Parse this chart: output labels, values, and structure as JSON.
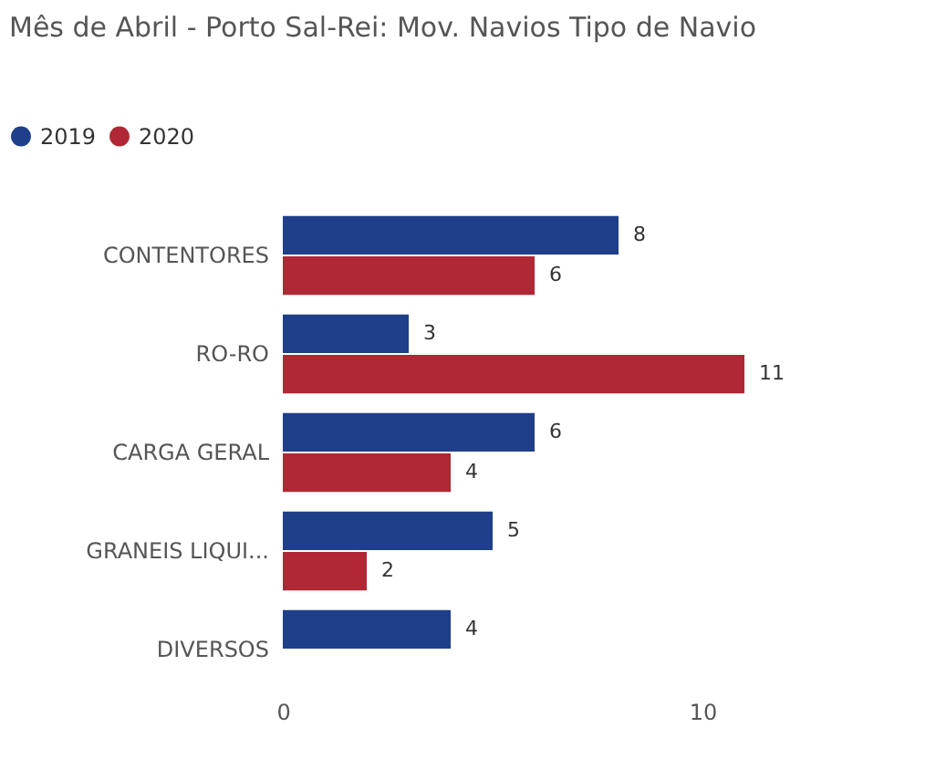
{
  "chart_data": {
    "type": "bar",
    "orientation": "horizontal",
    "title": "Mês de Abril - Porto Sal-Rei: Mov. Navios Tipo de Navio",
    "categories": [
      "CONTENTORES",
      "RO-RO",
      "CARGA GERAL",
      "GRANEIS LIQUI...",
      "DIVERSOS"
    ],
    "series": [
      {
        "name": "2019",
        "color": "#1f3f8a",
        "values": [
          8,
          3,
          6,
          5,
          4
        ]
      },
      {
        "name": "2020",
        "color": "#b02835",
        "values": [
          6,
          11,
          4,
          2,
          null
        ]
      }
    ],
    "xlim": [
      0,
      11
    ],
    "xticks": [
      0,
      10
    ],
    "data_labels": true,
    "legend": "top left"
  }
}
